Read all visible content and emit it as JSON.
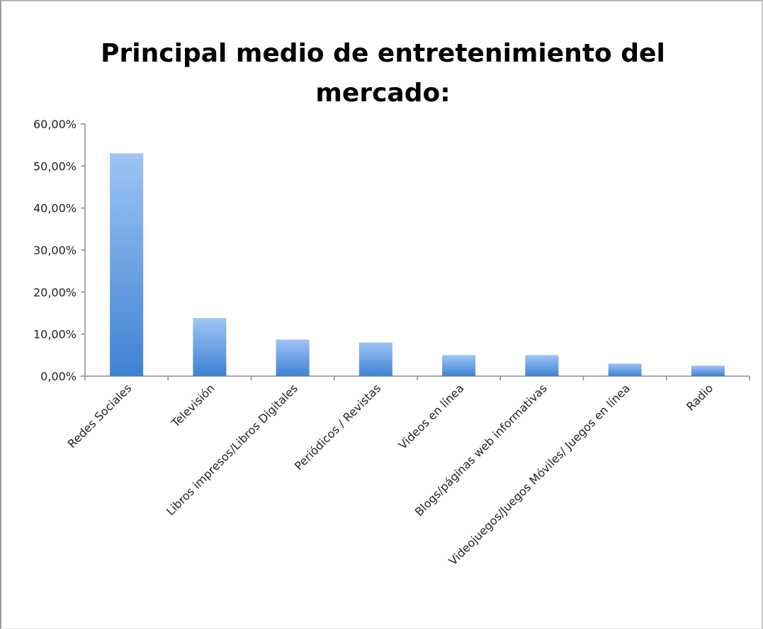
{
  "chart_data": {
    "type": "bar",
    "title_lines": [
      "Principal medio de entretenimiento del",
      "mercado:"
    ],
    "categories": [
      "Redes Sociales",
      "Televisión",
      "Libros impresos/Libros Digitales",
      "Periódicos / Revistas",
      "Videos en línea",
      "Blogs/páginas web informativas",
      "Videojuegos/Juegos Móviles/ Juegos en línea",
      "Radio"
    ],
    "values": [
      53.0,
      13.8,
      8.7,
      8.0,
      5.0,
      5.0,
      3.0,
      2.5
    ],
    "ylim": [
      0,
      60
    ],
    "y_ticks": [
      0,
      10,
      20,
      30,
      40,
      50,
      60
    ],
    "y_tick_labels": [
      "0,00%",
      "10,00%",
      "20,00%",
      "30,00%",
      "40,00%",
      "50,00%",
      "60,00%"
    ],
    "xlabel": "",
    "ylabel": "",
    "grid": false,
    "legend": "none",
    "bar_gradient": {
      "top": "#9ec4f5",
      "bottom": "#3f82d3"
    },
    "axis_color": "#8c8c8c"
  }
}
